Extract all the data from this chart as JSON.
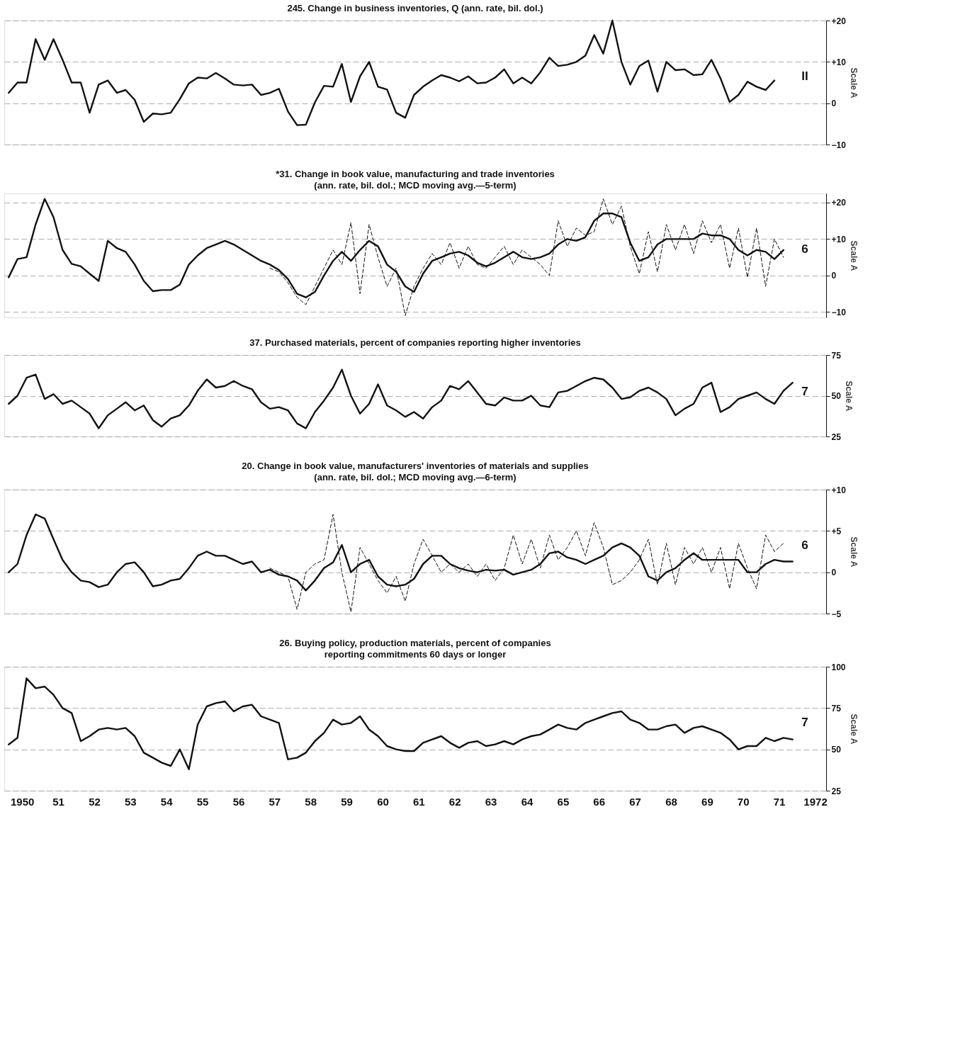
{
  "chart_data": [
    {
      "type": "line",
      "title": "245. Change in business inventories, Q (ann. rate, bil. dol.)",
      "ylabel": "Scale A",
      "annotations": [
        "II"
      ],
      "grid": "y",
      "tick_labels": "y",
      "xlim": [
        "1950-01-01",
        "1972-10-20"
      ],
      "ylim": [
        -10,
        20
      ],
      "yticks": [
        -10,
        0,
        {
          "value": 10,
          "label": "+10"
        },
        {
          "value": 20,
          "label": "+20"
        }
      ],
      "series": [
        {
          "color": "#111111",
          "line_style": "solid",
          "x": [
            "1950-02-15",
            "1950-05-15",
            "1950-08-15",
            "1950-11-15",
            "1951-02-15",
            "1951-05-15",
            "1951-08-15",
            "1951-11-15",
            "1952-02-15",
            "1952-05-15",
            "1952-08-15",
            "1952-11-15",
            "1953-02-15",
            "1953-05-15",
            "1953-08-15",
            "1953-11-15",
            "1954-02-15",
            "1954-05-15",
            "1954-08-15",
            "1954-11-15",
            "1955-02-15",
            "1955-05-15",
            "1955-08-15",
            "1955-11-15",
            "1956-02-15",
            "1956-05-15",
            "1956-08-15",
            "1956-11-15",
            "1957-02-15",
            "1957-05-15",
            "1957-08-15",
            "1957-11-15",
            "1958-02-15",
            "1958-05-15",
            "1958-08-15",
            "1958-11-15",
            "1959-02-15",
            "1959-05-15",
            "1959-08-15",
            "1959-11-15",
            "1960-02-15",
            "1960-05-15",
            "1960-08-15",
            "1960-11-15",
            "1961-02-15",
            "1961-05-15",
            "1961-08-15",
            "1961-11-15",
            "1962-02-15",
            "1962-05-15",
            "1962-08-15",
            "1962-11-15",
            "1963-02-15",
            "1963-05-15",
            "1963-08-15",
            "1963-11-15",
            "1964-02-15",
            "1964-05-15",
            "1964-08-15",
            "1964-11-15",
            "1965-02-15",
            "1965-05-15",
            "1965-08-15",
            "1965-11-15",
            "1966-02-15",
            "1966-05-15",
            "1966-08-15",
            "1966-11-15",
            "1967-02-15",
            "1967-05-15",
            "1967-08-15",
            "1967-11-15",
            "1968-02-15",
            "1968-05-15",
            "1968-08-15",
            "1968-11-15",
            "1969-02-15",
            "1969-05-15",
            "1969-08-15",
            "1969-11-15",
            "1970-02-15",
            "1970-05-15",
            "1970-08-15",
            "1970-11-15",
            "1971-02-15",
            "1971-05-15"
          ],
          "values": [
            2.5,
            5,
            5,
            15.5,
            10.5,
            15.5,
            10.5,
            5,
            5,
            -2.3,
            4.5,
            5.5,
            2.5,
            3.2,
            0.8,
            -4.5,
            -2.5,
            -2.7,
            -2.3,
            1,
            4.8,
            6.2,
            6,
            7.3,
            6,
            4.5,
            4.3,
            4.5,
            2,
            2.5,
            3.5,
            -2,
            -5.3,
            -5.2,
            0.2,
            4.2,
            4,
            9.5,
            0.3,
            6.5,
            10,
            4,
            3.3,
            -2.3,
            -3.5,
            2,
            4,
            5.5,
            6.8,
            6.2,
            5.3,
            6.5,
            4.8,
            5,
            6.2,
            8.2,
            4.8,
            6.2,
            4.8,
            7.5,
            11,
            9,
            9.3,
            10,
            11.5,
            16.5,
            12,
            20,
            10,
            4.5,
            9,
            10.3,
            2.8,
            10,
            8,
            8.2,
            6.8,
            7,
            10.5,
            6,
            0.3,
            2,
            5.2,
            4,
            3.2,
            5.5
          ]
        }
      ]
    },
    {
      "type": "line",
      "title": "*31. Change in book value, manufacturing and trade inventories",
      "subtitle": "(ann. rate, bil. dol.; MCD moving avg.—5-term)",
      "ylabel": "Scale A",
      "annotations": [
        "6"
      ],
      "grid": "y",
      "tick_labels": "y",
      "xlim": [
        "1950-01-01",
        "1972-10-20"
      ],
      "ylim": [
        -11.5,
        22.5
      ],
      "yticks": [
        -10,
        0,
        {
          "value": 10,
          "label": "+10"
        },
        {
          "value": 20,
          "label": "+20"
        }
      ],
      "series": [
        {
          "color": "#111111",
          "line_style": "solid",
          "x": [
            "1950-02-15",
            "1950-05-15",
            "1950-08-15",
            "1950-11-15",
            "1951-02-15",
            "1951-05-15",
            "1951-08-15",
            "1951-11-15",
            "1952-02-15",
            "1952-05-15",
            "1952-08-15",
            "1952-11-15",
            "1953-02-15",
            "1953-05-15",
            "1953-08-15",
            "1953-11-15",
            "1954-02-15",
            "1954-05-15",
            "1954-08-15",
            "1954-11-15",
            "1955-02-15",
            "1955-05-15",
            "1955-08-15",
            "1955-11-15",
            "1956-02-15",
            "1956-05-15",
            "1956-08-15",
            "1956-11-15",
            "1957-02-15",
            "1957-05-15",
            "1957-08-15",
            "1957-11-15",
            "1958-02-15",
            "1958-05-15",
            "1958-08-15",
            "1958-11-15",
            "1959-02-15",
            "1959-05-15",
            "1959-08-15",
            "1959-11-15",
            "1960-02-15",
            "1960-05-15",
            "1960-08-15",
            "1960-11-15",
            "1961-02-15",
            "1961-05-15",
            "1961-08-15",
            "1961-11-15",
            "1962-02-15",
            "1962-05-15",
            "1962-08-15",
            "1962-11-15",
            "1963-02-15",
            "1963-05-15",
            "1963-08-15",
            "1963-11-15",
            "1964-02-15",
            "1964-05-15",
            "1964-08-15",
            "1964-11-15",
            "1965-02-15",
            "1965-05-15",
            "1965-08-15",
            "1965-11-15",
            "1966-02-15",
            "1966-05-15",
            "1966-08-15",
            "1966-11-15",
            "1967-02-15",
            "1967-05-15",
            "1967-08-15",
            "1967-11-15",
            "1968-02-15",
            "1968-05-15",
            "1968-08-15",
            "1968-11-15",
            "1969-02-15",
            "1969-05-15",
            "1969-08-15",
            "1969-11-15",
            "1970-02-15",
            "1970-05-15",
            "1970-08-15",
            "1970-11-15",
            "1971-02-15",
            "1971-05-15",
            "1971-08-15"
          ],
          "values": [
            -0.5,
            4.5,
            5,
            14,
            21,
            16,
            7,
            3.2,
            2.5,
            0.5,
            -1.5,
            9.5,
            7.5,
            6.5,
            3,
            -1.5,
            -4.3,
            -4,
            -4,
            -2.5,
            3,
            5.5,
            7.5,
            8.5,
            9.5,
            8.5,
            7,
            5.5,
            4,
            3,
            1.5,
            -1,
            -5,
            -6,
            -4.5,
            0,
            4,
            6.5,
            4,
            7,
            9.5,
            8,
            3,
            1,
            -3,
            -4.5,
            0.5,
            4,
            5,
            6,
            6.5,
            5.5,
            3.5,
            2.5,
            3.5,
            5,
            6.5,
            5,
            4.5,
            5,
            6,
            8.5,
            10,
            9.5,
            10.5,
            15,
            17,
            17,
            16,
            9,
            4,
            5,
            8.5,
            10,
            10,
            10,
            10,
            11.5,
            11,
            11,
            10,
            7,
            5.5,
            7,
            6.5,
            4.5,
            7
          ]
        },
        {
          "color": "#111111",
          "line_style": "dashed",
          "x": [
            "1957-05-15",
            "1957-08-15",
            "1957-11-15",
            "1958-02-15",
            "1958-05-15",
            "1958-08-15",
            "1958-11-15",
            "1959-02-15",
            "1959-05-15",
            "1959-08-15",
            "1959-11-15",
            "1960-02-15",
            "1960-05-15",
            "1960-08-15",
            "1960-11-15",
            "1961-02-15",
            "1961-05-15",
            "1961-08-15",
            "1961-11-15",
            "1962-02-15",
            "1962-05-15",
            "1962-08-15",
            "1962-11-15",
            "1963-02-15",
            "1963-05-15",
            "1963-08-15",
            "1963-11-15",
            "1964-02-15",
            "1964-05-15",
            "1964-08-15",
            "1964-11-15",
            "1965-02-15",
            "1965-05-15",
            "1965-08-15",
            "1965-11-15",
            "1966-02-15",
            "1966-05-15",
            "1966-08-15",
            "1966-11-15",
            "1967-02-15",
            "1967-05-15",
            "1967-08-15",
            "1967-11-15",
            "1968-02-15",
            "1968-05-15",
            "1968-08-15",
            "1968-11-15",
            "1969-02-15",
            "1969-05-15",
            "1969-08-15",
            "1969-11-15",
            "1970-02-15",
            "1970-05-15",
            "1970-08-15",
            "1970-11-15",
            "1971-02-15",
            "1971-05-15",
            "1971-08-15"
          ],
          "values": [
            2,
            1,
            -2,
            -6,
            -8,
            -3,
            2,
            7,
            3,
            14.5,
            -5,
            14,
            5,
            -3,
            2,
            -11,
            -3,
            2,
            6,
            3,
            9,
            2,
            8,
            3,
            2,
            5,
            8,
            3,
            7,
            5,
            3,
            0,
            15,
            8,
            13,
            11,
            12,
            21,
            14,
            19,
            8,
            0.5,
            12,
            1,
            14,
            7,
            14,
            6,
            15,
            9,
            14,
            2,
            13,
            -0.5,
            13,
            -3,
            10,
            5
          ]
        }
      ]
    },
    {
      "type": "line",
      "title": "37. Purchased materials, percent of companies reporting higher inventories",
      "ylabel": "Scale A",
      "annotations": [
        "7"
      ],
      "grid": "y",
      "tick_labels": "y",
      "xlim": [
        "1950-01-01",
        "1972-10-20"
      ],
      "ylim": [
        25,
        75
      ],
      "yticks": [
        25,
        50,
        75
      ],
      "series": [
        {
          "color": "#111111",
          "line_style": "solid",
          "x": [
            "1950-02-15",
            "1950-05-15",
            "1950-08-15",
            "1950-11-15",
            "1951-02-15",
            "1951-05-15",
            "1951-08-15",
            "1951-11-15",
            "1952-02-15",
            "1952-05-15",
            "1952-08-15",
            "1952-11-15",
            "1953-02-15",
            "1953-05-15",
            "1953-08-15",
            "1953-11-15",
            "1954-02-15",
            "1954-05-15",
            "1954-08-15",
            "1954-11-15",
            "1955-02-15",
            "1955-05-15",
            "1955-08-15",
            "1955-11-15",
            "1956-02-15",
            "1956-05-15",
            "1956-08-15",
            "1956-11-15",
            "1957-02-15",
            "1957-05-15",
            "1957-08-15",
            "1957-11-15",
            "1958-02-15",
            "1958-05-15",
            "1958-08-15",
            "1958-11-15",
            "1959-02-15",
            "1959-05-15",
            "1959-08-15",
            "1959-11-15",
            "1960-02-15",
            "1960-05-15",
            "1960-08-15",
            "1960-11-15",
            "1961-02-15",
            "1961-05-15",
            "1961-08-15",
            "1961-11-15",
            "1962-02-15",
            "1962-05-15",
            "1962-08-15",
            "1962-11-15",
            "1963-02-15",
            "1963-05-15",
            "1963-08-15",
            "1963-11-15",
            "1964-02-15",
            "1964-05-15",
            "1964-08-15",
            "1964-11-15",
            "1965-02-15",
            "1965-05-15",
            "1965-08-15",
            "1965-11-15",
            "1966-02-15",
            "1966-05-15",
            "1966-08-15",
            "1966-11-15",
            "1967-02-15",
            "1967-05-15",
            "1967-08-15",
            "1967-11-15",
            "1968-02-15",
            "1968-05-15",
            "1968-08-15",
            "1968-11-15",
            "1969-02-15",
            "1969-05-15",
            "1969-08-15",
            "1969-11-15",
            "1970-02-15",
            "1970-05-15",
            "1970-08-15",
            "1970-11-15",
            "1971-02-15",
            "1971-05-15",
            "1971-08-15",
            "1971-11-15"
          ],
          "values": [
            45,
            50,
            61,
            63,
            48,
            51,
            45,
            47,
            43,
            39,
            30,
            38,
            42,
            46,
            41,
            44,
            35,
            31,
            36,
            38,
            44,
            53,
            60,
            55,
            56,
            59,
            56,
            54,
            46,
            42,
            43,
            41,
            33,
            30,
            40,
            47,
            55,
            66,
            50,
            39,
            45,
            57,
            44,
            41,
            37,
            40,
            36,
            43,
            47,
            56,
            54,
            59,
            52,
            45,
            44,
            49,
            47,
            47,
            50,
            44,
            43,
            52,
            53,
            56,
            59,
            61,
            60,
            55,
            48,
            49,
            53,
            55,
            52,
            48,
            38,
            42,
            45,
            55,
            58,
            40,
            43,
            48,
            50,
            52,
            48,
            45,
            53,
            58
          ]
        }
      ]
    },
    {
      "type": "line",
      "title": "20. Change in book value, manufacturers' inventories of materials and supplies",
      "subtitle": "(ann. rate, bil. dol.; MCD moving avg.—6-term)",
      "ylabel": "Scale A",
      "annotations": [
        "6"
      ],
      "grid": "y",
      "tick_labels": "y",
      "xlim": [
        "1950-01-01",
        "1972-10-20"
      ],
      "ylim": [
        -5,
        10
      ],
      "yticks": [
        -5,
        0,
        {
          "value": 5,
          "label": "+5"
        },
        {
          "value": 10,
          "label": "+10"
        }
      ],
      "series": [
        {
          "color": "#111111",
          "line_style": "solid",
          "x": [
            "1950-02-15",
            "1950-05-15",
            "1950-08-15",
            "1950-11-15",
            "1951-02-15",
            "1951-05-15",
            "1951-08-15",
            "1951-11-15",
            "1952-02-15",
            "1952-05-15",
            "1952-08-15",
            "1952-11-15",
            "1953-02-15",
            "1953-05-15",
            "1953-08-15",
            "1953-11-15",
            "1954-02-15",
            "1954-05-15",
            "1954-08-15",
            "1954-11-15",
            "1955-02-15",
            "1955-05-15",
            "1955-08-15",
            "1955-11-15",
            "1956-02-15",
            "1956-05-15",
            "1956-08-15",
            "1956-11-15",
            "1957-02-15",
            "1957-05-15",
            "1957-08-15",
            "1957-11-15",
            "1958-02-15",
            "1958-05-15",
            "1958-08-15",
            "1958-11-15",
            "1959-02-15",
            "1959-05-15",
            "1959-08-15",
            "1959-11-15",
            "1960-02-15",
            "1960-05-15",
            "1960-08-15",
            "1960-11-15",
            "1961-02-15",
            "1961-05-15",
            "1961-08-15",
            "1961-11-15",
            "1962-02-15",
            "1962-05-15",
            "1962-08-15",
            "1962-11-15",
            "1963-02-15",
            "1963-05-15",
            "1963-08-15",
            "1963-11-15",
            "1964-02-15",
            "1964-05-15",
            "1964-08-15",
            "1964-11-15",
            "1965-02-15",
            "1965-05-15",
            "1965-08-15",
            "1965-11-15",
            "1966-02-15",
            "1966-05-15",
            "1966-08-15",
            "1966-11-15",
            "1967-02-15",
            "1967-05-15",
            "1967-08-15",
            "1967-11-15",
            "1968-02-15",
            "1968-05-15",
            "1968-08-15",
            "1968-11-15",
            "1969-02-15",
            "1969-05-15",
            "1969-08-15",
            "1969-11-15",
            "1970-02-15",
            "1970-05-15",
            "1970-08-15",
            "1970-11-15",
            "1971-02-15",
            "1971-05-15",
            "1971-08-15",
            "1971-11-15"
          ],
          "values": [
            0,
            1,
            4.5,
            7,
            6.5,
            4,
            1.5,
            0,
            -1,
            -1.2,
            -1.8,
            -1.5,
            0,
            1,
            1.2,
            0,
            -1.7,
            -1.5,
            -1,
            -0.8,
            0.5,
            2,
            2.5,
            2,
            2,
            1.5,
            1,
            1.3,
            0,
            0.3,
            -0.3,
            -0.5,
            -1,
            -2.2,
            -1,
            0.5,
            1.2,
            3.3,
            0,
            1,
            1.5,
            -0.5,
            -1.5,
            -1.7,
            -1.5,
            -0.8,
            1,
            2,
            2,
            1,
            0.5,
            0.2,
            0,
            0.3,
            0.2,
            0.3,
            -0.3,
            0,
            0.3,
            1,
            2.3,
            2.5,
            1.8,
            1.5,
            1,
            1.5,
            2,
            3,
            3.5,
            3,
            2,
            -0.5,
            -1,
            0,
            0.5,
            1.5,
            2.3,
            1.5,
            1.5,
            1.5,
            1.5,
            1.5,
            0,
            0,
            1,
            1.5,
            1.3,
            1.3
          ]
        },
        {
          "color": "#111111",
          "line_style": "dashed",
          "x": [
            "1957-05-15",
            "1957-08-15",
            "1957-11-15",
            "1958-02-15",
            "1958-05-15",
            "1958-08-15",
            "1958-11-15",
            "1959-02-15",
            "1959-05-15",
            "1959-08-15",
            "1959-11-15",
            "1960-02-15",
            "1960-05-15",
            "1960-08-15",
            "1960-11-15",
            "1961-02-15",
            "1961-05-15",
            "1961-08-15",
            "1961-11-15",
            "1962-02-15",
            "1962-05-15",
            "1962-08-15",
            "1962-11-15",
            "1963-02-15",
            "1963-05-15",
            "1963-08-15",
            "1963-11-15",
            "1964-02-15",
            "1964-05-15",
            "1964-08-15",
            "1964-11-15",
            "1965-02-15",
            "1965-05-15",
            "1965-08-15",
            "1965-11-15",
            "1966-02-15",
            "1966-05-15",
            "1966-08-15",
            "1966-11-15",
            "1967-02-15",
            "1967-05-15",
            "1967-08-15",
            "1967-11-15",
            "1968-02-15",
            "1968-05-15",
            "1968-08-15",
            "1968-11-15",
            "1969-02-15",
            "1969-05-15",
            "1969-08-15",
            "1969-11-15",
            "1970-02-15",
            "1970-05-15",
            "1970-08-15",
            "1970-11-15",
            "1971-02-15",
            "1971-05-15",
            "1971-08-15"
          ],
          "values": [
            0.5,
            0,
            -0.5,
            -4.5,
            0,
            1,
            1.5,
            7,
            0,
            -4.8,
            3,
            1,
            -1,
            -2.5,
            -0.5,
            -3.5,
            1,
            4,
            2,
            0,
            1,
            0,
            1,
            -0.5,
            1,
            -1,
            0.5,
            4.5,
            1,
            4,
            0.5,
            4.5,
            1.5,
            3,
            5,
            2,
            6,
            3,
            -1.5,
            -1,
            0,
            1.5,
            4,
            -1.5,
            3.5,
            -1.5,
            3,
            1,
            3,
            0,
            3,
            -2,
            3.5,
            0.5,
            -2,
            4.5,
            2.5,
            3.5
          ]
        }
      ]
    },
    {
      "type": "line",
      "title": "26. Buying policy, production materials, percent of companies",
      "subtitle": "reporting commitments 60 days or longer",
      "ylabel": "Scale A",
      "annotations": [
        "7"
      ],
      "grid": "y",
      "xlim": [
        "1950-01-01",
        "1972-10-20"
      ],
      "xticks": [
        {
          "value": "1950-07-01",
          "label": "1950"
        },
        {
          "value": "1951-07-01",
          "label": "51"
        },
        {
          "value": "1952-07-01",
          "label": "52"
        },
        {
          "value": "1953-07-01",
          "label": "53"
        },
        {
          "value": "1954-07-01",
          "label": "54"
        },
        {
          "value": "1955-07-01",
          "label": "55"
        },
        {
          "value": "1956-07-01",
          "label": "56"
        },
        {
          "value": "1957-07-01",
          "label": "57"
        },
        {
          "value": "1958-07-01",
          "label": "58"
        },
        {
          "value": "1959-07-01",
          "label": "59"
        },
        {
          "value": "1960-07-01",
          "label": "60"
        },
        {
          "value": "1961-07-01",
          "label": "61"
        },
        {
          "value": "1962-07-01",
          "label": "62"
        },
        {
          "value": "1963-07-01",
          "label": "63"
        },
        {
          "value": "1964-07-01",
          "label": "64"
        },
        {
          "value": "1965-07-01",
          "label": "65"
        },
        {
          "value": "1966-07-01",
          "label": "66"
        },
        {
          "value": "1967-07-01",
          "label": "67"
        },
        {
          "value": "1968-07-01",
          "label": "68"
        },
        {
          "value": "1969-07-01",
          "label": "69"
        },
        {
          "value": "1970-07-01",
          "label": "70"
        },
        {
          "value": "1971-07-01",
          "label": "71"
        },
        {
          "value": "1972-07-01",
          "label": "1972"
        }
      ],
      "ylim": [
        25,
        100
      ],
      "yticks": [
        25,
        50,
        75,
        100
      ],
      "series": [
        {
          "color": "#111111",
          "line_style": "solid",
          "x": [
            "1950-02-15",
            "1950-05-15",
            "1950-08-15",
            "1950-11-15",
            "1951-02-15",
            "1951-05-15",
            "1951-08-15",
            "1951-11-15",
            "1952-02-15",
            "1952-05-15",
            "1952-08-15",
            "1952-11-15",
            "1953-02-15",
            "1953-05-15",
            "1953-08-15",
            "1953-11-15",
            "1954-02-15",
            "1954-05-15",
            "1954-08-15",
            "1954-11-15",
            "1955-02-15",
            "1955-05-15",
            "1955-08-15",
            "1955-11-15",
            "1956-02-15",
            "1956-05-15",
            "1956-08-15",
            "1956-11-15",
            "1957-02-15",
            "1957-05-15",
            "1957-08-15",
            "1957-11-15",
            "1958-02-15",
            "1958-05-15",
            "1958-08-15",
            "1958-11-15",
            "1959-02-15",
            "1959-05-15",
            "1959-08-15",
            "1959-11-15",
            "1960-02-15",
            "1960-05-15",
            "1960-08-15",
            "1960-11-15",
            "1961-02-15",
            "1961-05-15",
            "1961-08-15",
            "1961-11-15",
            "1962-02-15",
            "1962-05-15",
            "1962-08-15",
            "1962-11-15",
            "1963-02-15",
            "1963-05-15",
            "1963-08-15",
            "1963-11-15",
            "1964-02-15",
            "1964-05-15",
            "1964-08-15",
            "1964-11-15",
            "1965-02-15",
            "1965-05-15",
            "1965-08-15",
            "1965-11-15",
            "1966-02-15",
            "1966-05-15",
            "1966-08-15",
            "1966-11-15",
            "1967-02-15",
            "1967-05-15",
            "1967-08-15",
            "1967-11-15",
            "1968-02-15",
            "1968-05-15",
            "1968-08-15",
            "1968-11-15",
            "1969-02-15",
            "1969-05-15",
            "1969-08-15",
            "1969-11-15",
            "1970-02-15",
            "1970-05-15",
            "1970-08-15",
            "1970-11-15",
            "1971-02-15",
            "1971-05-15",
            "1971-08-15",
            "1971-11-15"
          ],
          "values": [
            53,
            57,
            93,
            87,
            88,
            83,
            75,
            72,
            55,
            58,
            62,
            63,
            62,
            63,
            58,
            48,
            45,
            42,
            40,
            50,
            38,
            65,
            76,
            78,
            79,
            73,
            76,
            77,
            70,
            68,
            66,
            44,
            45,
            48,
            55,
            60,
            68,
            65,
            66,
            70,
            62,
            58,
            52,
            50,
            49,
            49,
            54,
            56,
            58,
            54,
            51,
            54,
            55,
            52,
            53,
            55,
            53,
            56,
            58,
            59,
            62,
            65,
            63,
            62,
            66,
            68,
            70,
            72,
            73,
            68,
            66,
            62,
            62,
            64,
            65,
            60,
            63,
            64,
            62,
            60,
            56,
            50,
            52,
            52,
            57,
            55,
            57,
            56
          ]
        }
      ]
    }
  ]
}
